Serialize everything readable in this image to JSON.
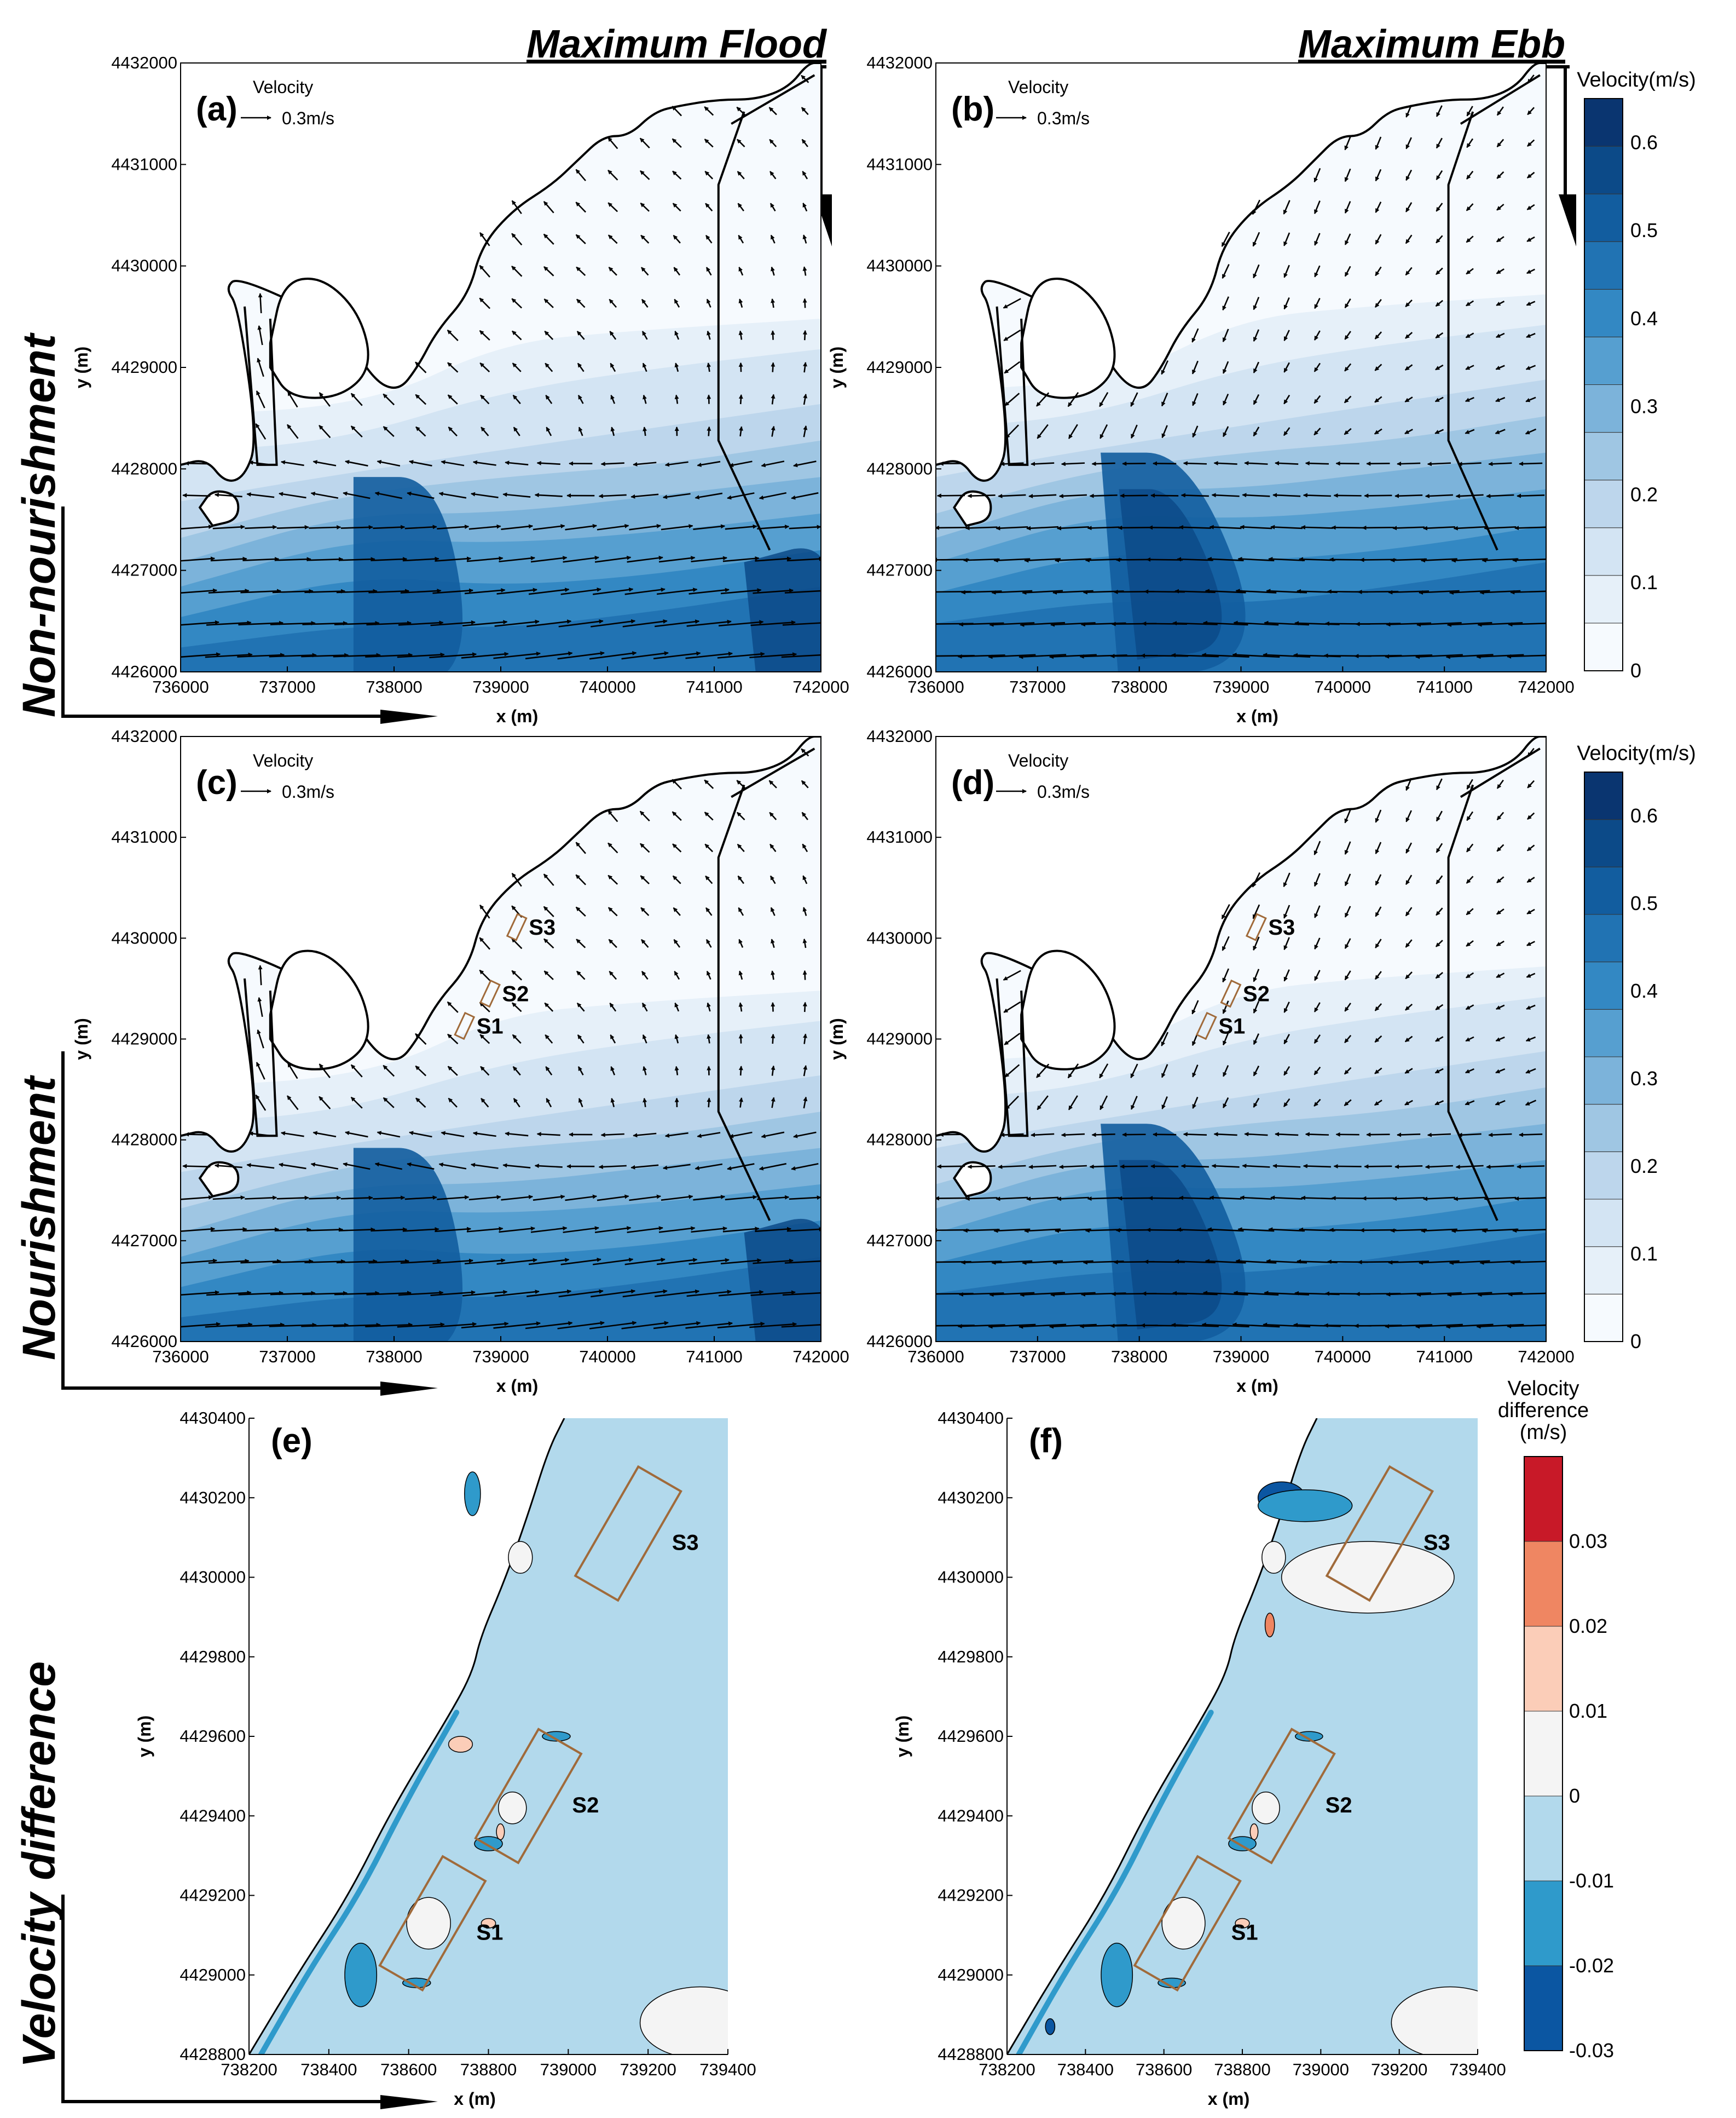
{
  "figure": {
    "columns": [
      "Maximum Flood",
      "Maximum Ebb"
    ],
    "rows": [
      "Non-nourishment",
      "Nourishment",
      "Velocity difference"
    ]
  },
  "colors": {
    "v": [
      "#f6fafe",
      "#e6f0f9",
      "#d3e4f3",
      "#bdd6ec",
      "#9fc6e3",
      "#7cb3da",
      "#569fd0",
      "#3388c3",
      "#2173b3",
      "#125d9f",
      "#0c4a88",
      "#0a3570"
    ],
    "d": [
      "#0b56a2",
      "#2f9acb",
      "#b2d9ec",
      "#f4f4f4",
      "#fbcdb8",
      "#ef8662",
      "#c81928"
    ],
    "land": "#ffffff",
    "box": "#a06a3a"
  },
  "chart_data": [
    {
      "type": "contour-quiver",
      "panel_label": "(a)",
      "xlabel": "x (m)",
      "ylabel": "y (m)",
      "xlim": [
        736000,
        742000
      ],
      "ylim": [
        4426000,
        4432000
      ],
      "xticks": [
        "736000",
        "737000",
        "738000",
        "739000",
        "740000",
        "741000",
        "742000"
      ],
      "yticks": [
        "4426000",
        "4427000",
        "4428000",
        "4429000",
        "4430000",
        "4431000",
        "4432000"
      ],
      "reference_vector": {
        "title": "Velocity",
        "label": "0.3m/s",
        "magnitude": 0.3
      },
      "tide": "flood"
    },
    {
      "type": "contour-quiver",
      "panel_label": "(b)",
      "xlabel": "x (m)",
      "ylabel": "y (m)",
      "xlim": [
        736000,
        742000
      ],
      "ylim": [
        4426000,
        4432000
      ],
      "xticks": [
        "736000",
        "737000",
        "738000",
        "739000",
        "740000",
        "741000",
        "742000"
      ],
      "yticks": [
        "4426000",
        "4427000",
        "4428000",
        "4429000",
        "4430000",
        "4431000",
        "4432000"
      ],
      "reference_vector": {
        "title": "Velocity",
        "label": "0.3m/s",
        "magnitude": 0.3
      },
      "tide": "ebb"
    },
    {
      "type": "contour-quiver",
      "panel_label": "(c)",
      "xlabel": "x (m)",
      "ylabel": "y (m)",
      "xlim": [
        736000,
        742000
      ],
      "ylim": [
        4426000,
        4432000
      ],
      "xticks": [
        "736000",
        "737000",
        "738000",
        "739000",
        "740000",
        "741000",
        "742000"
      ],
      "yticks": [
        "4426000",
        "4427000",
        "4428000",
        "4429000",
        "4430000",
        "4431000",
        "4432000"
      ],
      "reference_vector": {
        "title": "Velocity",
        "label": "0.3m/s",
        "magnitude": 0.3
      },
      "tide": "flood",
      "sites": [
        {
          "name": "S1",
          "x": 738660,
          "y": 4429130
        },
        {
          "name": "S2",
          "x": 738900,
          "y": 4429450
        },
        {
          "name": "S3",
          "x": 739150,
          "y": 4430110
        }
      ]
    },
    {
      "type": "contour-quiver",
      "panel_label": "(d)",
      "xlabel": "x (m)",
      "ylabel": "y (m)",
      "xlim": [
        736000,
        742000
      ],
      "ylim": [
        4426000,
        4432000
      ],
      "xticks": [
        "736000",
        "737000",
        "738000",
        "739000",
        "740000",
        "741000",
        "742000"
      ],
      "yticks": [
        "4426000",
        "4427000",
        "4428000",
        "4429000",
        "4430000",
        "4431000",
        "4432000"
      ],
      "reference_vector": {
        "title": "Velocity",
        "label": "0.3m/s",
        "magnitude": 0.3
      },
      "tide": "ebb",
      "sites": [
        {
          "name": "S1",
          "x": 738660,
          "y": 4429130
        },
        {
          "name": "S2",
          "x": 738900,
          "y": 4429450
        },
        {
          "name": "S3",
          "x": 739150,
          "y": 4430110
        }
      ]
    },
    {
      "type": "contour",
      "panel_label": "(e)",
      "xlabel": "x (m)",
      "ylabel": "y (m)",
      "xlim": [
        738200,
        739400
      ],
      "ylim": [
        4428800,
        4430400
      ],
      "xticks": [
        "738200",
        "738400",
        "738600",
        "738800",
        "739000",
        "739200",
        "739400"
      ],
      "yticks": [
        "4428800",
        "4429000",
        "4429200",
        "4429400",
        "4429600",
        "4429800",
        "4430000",
        "4430200",
        "4430400"
      ],
      "sites": [
        {
          "name": "S1",
          "x": 738660,
          "y": 4429130
        },
        {
          "name": "S2",
          "x": 738900,
          "y": 4429450
        },
        {
          "name": "S3",
          "x": 739150,
          "y": 4430110
        }
      ]
    },
    {
      "type": "contour",
      "panel_label": "(f)",
      "xlabel": "x (m)",
      "ylabel": "y (m)",
      "xlim": [
        738200,
        739400
      ],
      "ylim": [
        4428800,
        4430400
      ],
      "xticks": [
        "738200",
        "738400",
        "738600",
        "738800",
        "739000",
        "739200",
        "739400"
      ],
      "yticks": [
        "4428800",
        "4429000",
        "4429200",
        "4429400",
        "4429600",
        "4429800",
        "4430000",
        "4430200",
        "4430400"
      ],
      "sites": [
        {
          "name": "S1",
          "x": 738660,
          "y": 4429130
        },
        {
          "name": "S2",
          "x": 738900,
          "y": 4429450
        },
        {
          "name": "S3",
          "x": 739150,
          "y": 4430110
        }
      ]
    }
  ],
  "colorbar_velocity": {
    "title": "Velocity(m/s)",
    "labels": [
      "0.6",
      "0.5",
      "0.4",
      "0.3",
      "0.2",
      "0.1",
      "0"
    ],
    "values": [
      0.6,
      0.5,
      0.4,
      0.3,
      0.2,
      0.1,
      0
    ],
    "range": [
      0,
      0.65
    ]
  },
  "colorbar_difference": {
    "title_lines": [
      "Velocity",
      "difference",
      "(m/s)"
    ],
    "labels": [
      "0.03",
      "0.02",
      "0.01",
      "0",
      "-0.01",
      "-0.02",
      "-0.03"
    ],
    "values": [
      0.03,
      0.02,
      0.01,
      0,
      -0.01,
      -0.02,
      -0.03
    ],
    "range": [
      -0.03,
      0.04
    ]
  }
}
